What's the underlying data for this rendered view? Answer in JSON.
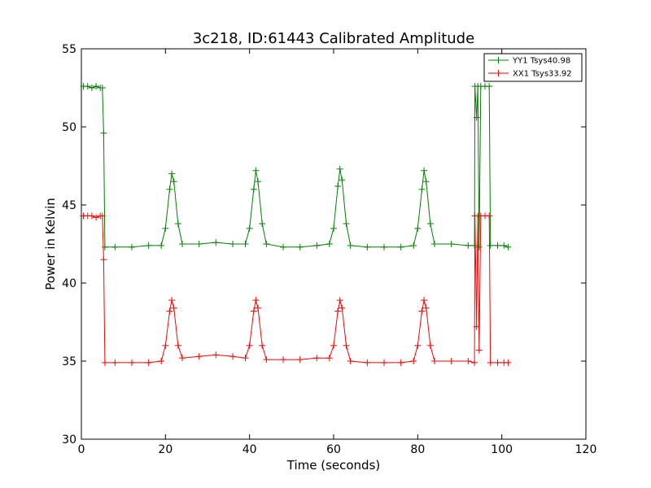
{
  "chart_data": {
    "type": "line",
    "title": "3c218, ID:61443 Calibrated Amplitude",
    "xlabel": "Time (seconds)",
    "ylabel": "Power in Kelvin",
    "xlim": [
      0,
      120
    ],
    "ylim": [
      30,
      55
    ],
    "xticks": [
      "0",
      "20",
      "40",
      "60",
      "80",
      "100",
      "120"
    ],
    "yticks": [
      "30",
      "35",
      "40",
      "45",
      "50",
      "55"
    ],
    "grid": false,
    "legend_position": "top-right",
    "series": [
      {
        "name": "YY1 Tsys40.98",
        "color": "#008000",
        "marker": "+",
        "points": [
          [
            0.5,
            52.6
          ],
          [
            1.5,
            52.6
          ],
          [
            2.5,
            52.5
          ],
          [
            3.5,
            52.6
          ],
          [
            4.5,
            52.5
          ],
          [
            5.0,
            52.5
          ],
          [
            5.3,
            49.6
          ],
          [
            5.6,
            42.3
          ],
          [
            8,
            42.3
          ],
          [
            12,
            42.3
          ],
          [
            16,
            42.4
          ],
          [
            19,
            42.4
          ],
          [
            20,
            43.5
          ],
          [
            21,
            46.0
          ],
          [
            21.5,
            47.0
          ],
          [
            22,
            46.5
          ],
          [
            23,
            43.8
          ],
          [
            24,
            42.5
          ],
          [
            28,
            42.5
          ],
          [
            32,
            42.6
          ],
          [
            36,
            42.5
          ],
          [
            39,
            42.5
          ],
          [
            40,
            43.5
          ],
          [
            41,
            46.0
          ],
          [
            41.5,
            47.2
          ],
          [
            42,
            46.5
          ],
          [
            43,
            43.8
          ],
          [
            44,
            42.5
          ],
          [
            48,
            42.3
          ],
          [
            52,
            42.3
          ],
          [
            56,
            42.4
          ],
          [
            59,
            42.5
          ],
          [
            60,
            43.5
          ],
          [
            61,
            46.2
          ],
          [
            61.5,
            47.3
          ],
          [
            62,
            46.6
          ],
          [
            63,
            43.8
          ],
          [
            64,
            42.4
          ],
          [
            68,
            42.3
          ],
          [
            72,
            42.3
          ],
          [
            76,
            42.3
          ],
          [
            79,
            42.4
          ],
          [
            80,
            43.5
          ],
          [
            81,
            46.0
          ],
          [
            81.5,
            47.2
          ],
          [
            82,
            46.5
          ],
          [
            83,
            43.8
          ],
          [
            84,
            42.5
          ],
          [
            88,
            42.5
          ],
          [
            92,
            42.4
          ],
          [
            93.5,
            42.4
          ],
          [
            93.6,
            52.6
          ],
          [
            94.0,
            50.6
          ],
          [
            94.3,
            52.6
          ],
          [
            94.6,
            42.3
          ],
          [
            95.0,
            52.6
          ],
          [
            96,
            52.6
          ],
          [
            97,
            52.6
          ],
          [
            97.3,
            42.4
          ],
          [
            99,
            42.4
          ],
          [
            100.5,
            42.4
          ],
          [
            101.5,
            42.3
          ]
        ]
      },
      {
        "name": "XX1 Tsys33.92",
        "color": "#ff0000",
        "marker": "+",
        "points": [
          [
            0.5,
            44.3
          ],
          [
            1.5,
            44.3
          ],
          [
            2.5,
            44.3
          ],
          [
            3.5,
            44.2
          ],
          [
            4.5,
            44.3
          ],
          [
            5.0,
            44.3
          ],
          [
            5.3,
            41.5
          ],
          [
            5.6,
            34.9
          ],
          [
            8,
            34.9
          ],
          [
            12,
            34.9
          ],
          [
            16,
            34.9
          ],
          [
            19,
            35.0
          ],
          [
            20,
            36.0
          ],
          [
            21,
            38.2
          ],
          [
            21.5,
            38.9
          ],
          [
            22,
            38.4
          ],
          [
            23,
            36.0
          ],
          [
            24,
            35.2
          ],
          [
            28,
            35.3
          ],
          [
            32,
            35.4
          ],
          [
            36,
            35.3
          ],
          [
            39,
            35.2
          ],
          [
            40,
            36.0
          ],
          [
            41,
            38.2
          ],
          [
            41.5,
            38.9
          ],
          [
            42,
            38.4
          ],
          [
            43,
            36.0
          ],
          [
            44,
            35.1
          ],
          [
            48,
            35.1
          ],
          [
            52,
            35.1
          ],
          [
            56,
            35.2
          ],
          [
            59,
            35.2
          ],
          [
            60,
            36.0
          ],
          [
            61,
            38.2
          ],
          [
            61.5,
            38.9
          ],
          [
            62,
            38.4
          ],
          [
            63,
            36.0
          ],
          [
            64,
            35.0
          ],
          [
            68,
            34.9
          ],
          [
            72,
            34.9
          ],
          [
            76,
            34.9
          ],
          [
            79,
            35.0
          ],
          [
            80,
            36.0
          ],
          [
            81,
            38.2
          ],
          [
            81.5,
            38.9
          ],
          [
            82,
            38.4
          ],
          [
            83,
            36.0
          ],
          [
            84,
            35.0
          ],
          [
            88,
            35.0
          ],
          [
            92,
            35.0
          ],
          [
            93.5,
            34.9
          ],
          [
            93.6,
            44.3
          ],
          [
            94.0,
            37.2
          ],
          [
            94.3,
            44.3
          ],
          [
            94.6,
            35.7
          ],
          [
            95.0,
            44.3
          ],
          [
            96,
            44.3
          ],
          [
            97,
            44.3
          ],
          [
            97.3,
            34.9
          ],
          [
            99,
            34.9
          ],
          [
            100.5,
            34.9
          ],
          [
            101.5,
            34.9
          ]
        ]
      }
    ]
  }
}
